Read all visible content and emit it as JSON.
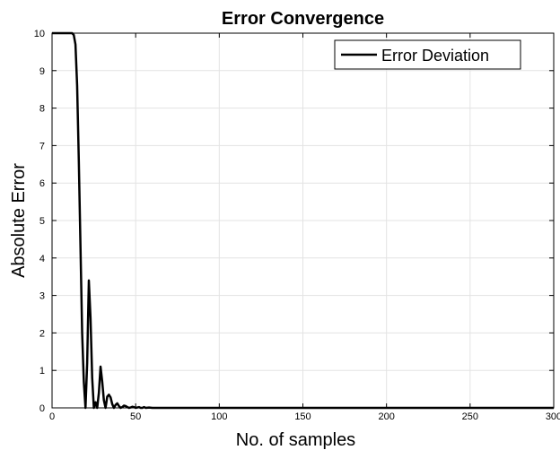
{
  "chart_data": {
    "type": "line",
    "title": "Error Convergence",
    "xlabel": "No. of samples",
    "ylabel": "Absolute Error",
    "xlim": [
      0,
      300
    ],
    "ylim": [
      0,
      10
    ],
    "xticks": [
      0,
      50,
      100,
      150,
      200,
      250,
      300
    ],
    "yticks": [
      0,
      1,
      2,
      3,
      4,
      5,
      6,
      7,
      8,
      9,
      10
    ],
    "grid": true,
    "legend_position": "top-right",
    "series": [
      {
        "name": "Error Deviation",
        "color": "#000000",
        "x": [
          0,
          12,
          13,
          14,
          15,
          16,
          17,
          18,
          19,
          20,
          21,
          22,
          23,
          24,
          25,
          26,
          27,
          28,
          29,
          30,
          31,
          32,
          33,
          34,
          35,
          36,
          37,
          38,
          39,
          40,
          41,
          42,
          43,
          44,
          45,
          46,
          47,
          48,
          49,
          50,
          51,
          52,
          53,
          54,
          55,
          56,
          58,
          60,
          70,
          80,
          100,
          150,
          200,
          250,
          300
        ],
        "y": [
          10,
          10,
          9.95,
          9.7,
          8.6,
          6.6,
          4.3,
          2.0,
          0.7,
          0.0,
          1.2,
          3.4,
          2.4,
          0.8,
          0.0,
          0.15,
          0.0,
          0.4,
          1.1,
          0.7,
          0.2,
          0.0,
          0.3,
          0.35,
          0.28,
          0.1,
          0.0,
          0.08,
          0.12,
          0.05,
          0.0,
          0.02,
          0.06,
          0.05,
          0.02,
          0.0,
          0.01,
          0.03,
          0.02,
          0.0,
          0.01,
          0.02,
          0.0,
          0.0,
          0.02,
          0.0,
          0.01,
          0.0,
          0.0,
          0.0,
          0.0,
          0.0,
          0.0,
          0.0,
          0.0
        ]
      }
    ]
  }
}
